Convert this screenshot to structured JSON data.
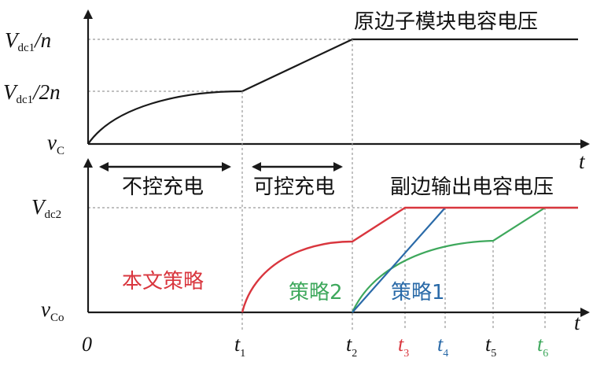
{
  "colors": {
    "axis": "#1a1a1a",
    "grid": "#9a9a9a",
    "proposed": "#d9363e",
    "strategy1": "#2a6aa8",
    "strategy2": "#3ea85c"
  },
  "top": {
    "y_high": "V",
    "y_high_sub": "dc1",
    "y_high_tail": "/n",
    "y_mid": "V",
    "y_mid_sub": "dc1",
    "y_mid_tail": "/2n",
    "y_origin": "v",
    "y_origin_sub": "C",
    "x_axis": "t",
    "curve_label": "原边子模块电容电压"
  },
  "phases": {
    "uncontrolled": "不控充电",
    "controlled": "可控充电"
  },
  "bottom": {
    "y_high": "V",
    "y_high_sub": "dc2",
    "y_origin": "v",
    "y_origin_sub": "Co",
    "x_axis": "t",
    "curve_label": "副边输出电容电压",
    "legend_proposed": "本文策略",
    "legend_s2": "策略2",
    "legend_s1": "策略1"
  },
  "x_ticks": {
    "zero": "0",
    "t": "t",
    "t1_sub": "1",
    "t2_sub": "2",
    "t3_sub": "3",
    "t4_sub": "4",
    "t5_sub": "5",
    "t6_sub": "6"
  }
}
